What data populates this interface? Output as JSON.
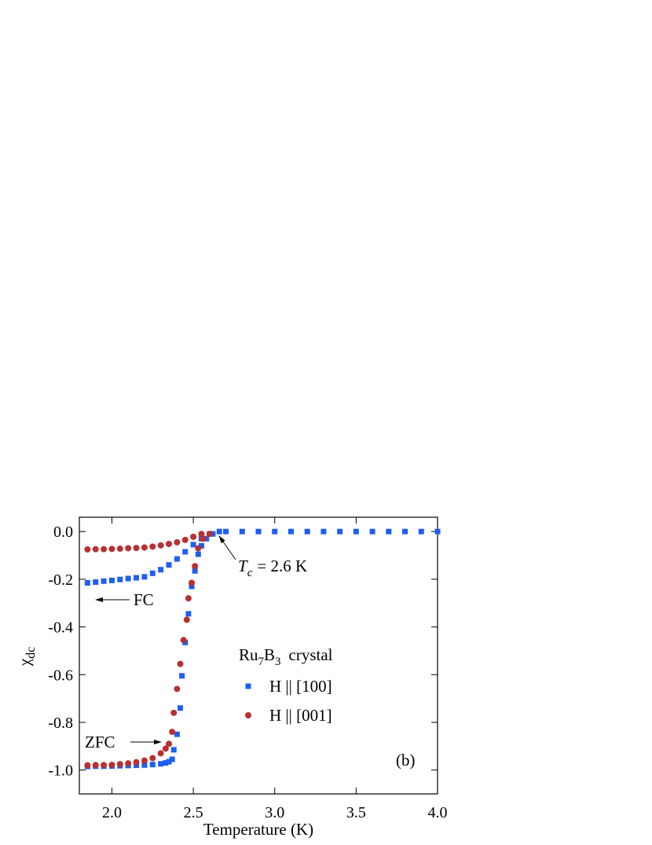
{
  "chart_data": {
    "type": "scatter",
    "x_label": "Temperature (K)",
    "y_label": [
      "χ",
      "dc"
    ],
    "xlim": [
      1.8,
      4.0
    ],
    "ylim": [
      -1.1,
      0.06
    ],
    "xticks": [
      {
        "value": 2.0,
        "label": "2.0"
      },
      {
        "value": 2.5,
        "label": "2.5"
      },
      {
        "value": 3.0,
        "label": "3.0"
      },
      {
        "value": 3.5,
        "label": "3.5"
      },
      {
        "value": 4.0,
        "label": "4.0"
      }
    ],
    "yticks": [
      {
        "value": 0,
        "label": "0.0"
      },
      {
        "value": -0.2,
        "label": "-0.2"
      },
      {
        "value": -0.4,
        "label": "-0.4"
      },
      {
        "value": -0.6,
        "label": "-0.6"
      },
      {
        "value": -0.8,
        "label": "-0.8"
      },
      {
        "value": -1.0,
        "label": "-1.0"
      }
    ],
    "legend_title": [
      "Ru",
      "7",
      "B",
      "3",
      "crystal"
    ],
    "annotations": {
      "fc": "FC",
      "zfc": "ZFC",
      "tc": [
        "T",
        "c",
        "= 2.6 K"
      ],
      "panel": "(b)"
    },
    "series": [
      {
        "name": "H || [100]",
        "color": "#1f5ef0",
        "marker": "square",
        "x": [
          1.85,
          1.9,
          1.95,
          2.0,
          2.05,
          2.1,
          2.15,
          2.2,
          2.25,
          2.3,
          2.33,
          2.35,
          2.37,
          2.38,
          2.4,
          2.42,
          2.43,
          2.45,
          2.47,
          2.49,
          2.51,
          2.53,
          2.55,
          2.58,
          2.62,
          2.66,
          2.7,
          2.8,
          2.9,
          3.0,
          3.1,
          3.2,
          3.3,
          3.4,
          3.5,
          3.6,
          3.7,
          3.8,
          3.9,
          4.0,
          1.85,
          1.9,
          1.95,
          2.0,
          2.05,
          2.1,
          2.15,
          2.2,
          2.25,
          2.3,
          2.35,
          2.4,
          2.45,
          2.5,
          2.55,
          2.6
        ],
        "values": [
          -0.985,
          -0.984,
          -0.984,
          -0.983,
          -0.982,
          -0.981,
          -0.98,
          -0.979,
          -0.977,
          -0.974,
          -0.97,
          -0.965,
          -0.955,
          -0.915,
          -0.85,
          -0.74,
          -0.605,
          -0.465,
          -0.345,
          -0.23,
          -0.165,
          -0.095,
          -0.06,
          -0.03,
          -0.01,
          0,
          0,
          0,
          0,
          0,
          0,
          0,
          0,
          0,
          0,
          0,
          0,
          0,
          0,
          0,
          -0.215,
          -0.212,
          -0.208,
          -0.205,
          -0.201,
          -0.197,
          -0.194,
          -0.19,
          -0.175,
          -0.16,
          -0.14,
          -0.115,
          -0.085,
          -0.055,
          -0.03,
          -0.01
        ]
      },
      {
        "name": "H || [001]",
        "color": "#b83030",
        "marker": "circle",
        "x": [
          1.85,
          1.9,
          1.95,
          2.0,
          2.05,
          2.1,
          2.15,
          2.2,
          2.25,
          2.3,
          2.33,
          2.35,
          2.37,
          2.38,
          2.4,
          2.42,
          2.44,
          2.46,
          2.47,
          2.49,
          2.51,
          2.53,
          2.56,
          2.6,
          1.85,
          1.9,
          1.95,
          2.0,
          2.05,
          2.1,
          2.15,
          2.2,
          2.25,
          2.3,
          2.35,
          2.4,
          2.45,
          2.5,
          2.55
        ],
        "values": [
          -0.98,
          -0.979,
          -0.979,
          -0.978,
          -0.975,
          -0.972,
          -0.967,
          -0.96,
          -0.95,
          -0.93,
          -0.91,
          -0.89,
          -0.84,
          -0.76,
          -0.66,
          -0.555,
          -0.455,
          -0.37,
          -0.28,
          -0.215,
          -0.145,
          -0.07,
          -0.03,
          -0.01,
          -0.075,
          -0.074,
          -0.074,
          -0.073,
          -0.072,
          -0.07,
          -0.069,
          -0.067,
          -0.063,
          -0.058,
          -0.052,
          -0.045,
          -0.035,
          -0.022,
          -0.01
        ]
      }
    ]
  }
}
